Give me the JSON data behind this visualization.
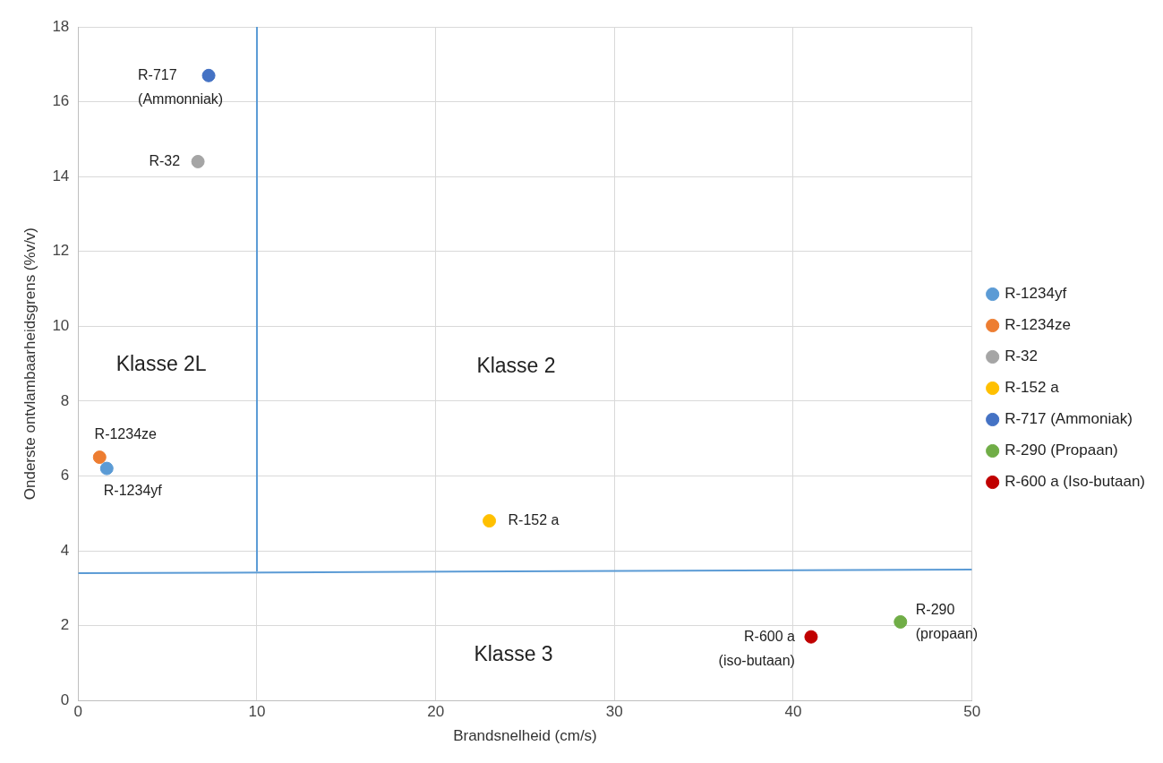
{
  "chart_data": {
    "type": "scatter",
    "xlabel": "Brandsnelheid (cm/s)",
    "ylabel": "Onderste ontvlambaarheidsgrens (%v/v)",
    "xlim": [
      0,
      50
    ],
    "xticks": [
      0,
      10,
      20,
      30,
      40,
      50
    ],
    "ylim": [
      0,
      18
    ],
    "yticks": [
      0,
      2,
      4,
      6,
      8,
      10,
      12,
      14,
      16,
      18
    ],
    "grid": true,
    "legend": "right",
    "series": [
      {
        "name": "R-1234yf",
        "color": "#5b9bd5",
        "marker": "circle",
        "x": [
          1.6
        ],
        "values": [
          6.2
        ]
      },
      {
        "name": "R-1234ze",
        "color": "#ed7d31",
        "marker": "circle",
        "x": [
          1.2
        ],
        "values": [
          6.5
        ]
      },
      {
        "name": "R-32",
        "color": "#a5a5a5",
        "marker": "circle",
        "x": [
          6.7
        ],
        "values": [
          14.4
        ]
      },
      {
        "name": "R-152 a",
        "color": "#ffc000",
        "marker": "circle",
        "x": [
          23.0
        ],
        "values": [
          4.8
        ]
      },
      {
        "name": "R-717 (Ammoniak)",
        "color": "#4472c4",
        "marker": "circle",
        "x": [
          7.3
        ],
        "values": [
          16.7
        ]
      },
      {
        "name": "R-290 (Propaan)",
        "color": "#70ad47",
        "marker": "circle",
        "x": [
          46.0
        ],
        "values": [
          2.1
        ]
      },
      {
        "name": "R-600 a (Iso-butaan)",
        "color": "#c00000",
        "marker": "circle",
        "x": [
          41.0
        ],
        "values": [
          1.7
        ]
      },
      {
        "type": "line",
        "color": "#5b9bd5",
        "marker": "none",
        "x": [
          10,
          10
        ],
        "values": [
          3.45,
          18
        ]
      },
      {
        "type": "line",
        "color": "#5b9bd5",
        "marker": "none",
        "x": [
          0,
          50
        ],
        "values": [
          3.4,
          3.5
        ]
      }
    ],
    "annotations": [
      {
        "text": "R-717\n(Ammonniak)",
        "x": 7.3,
        "y": 16.7
      },
      {
        "text": "R-32",
        "x": 6.7,
        "y": 14.4
      },
      {
        "text": "R-1234ze",
        "x": 1.2,
        "y": 6.5
      },
      {
        "text": "R-1234yf",
        "x": 1.6,
        "y": 6.2
      },
      {
        "text": "R-152 a",
        "x": 23.0,
        "y": 4.8
      },
      {
        "text": "R-290\n(propaan)",
        "x": 46.0,
        "y": 2.1
      },
      {
        "text": "R-600 a\n(iso-butaan)",
        "x": 41.0,
        "y": 1.7
      },
      "Klasse 2L",
      "Klasse 2",
      "Klasse 3"
    ]
  }
}
